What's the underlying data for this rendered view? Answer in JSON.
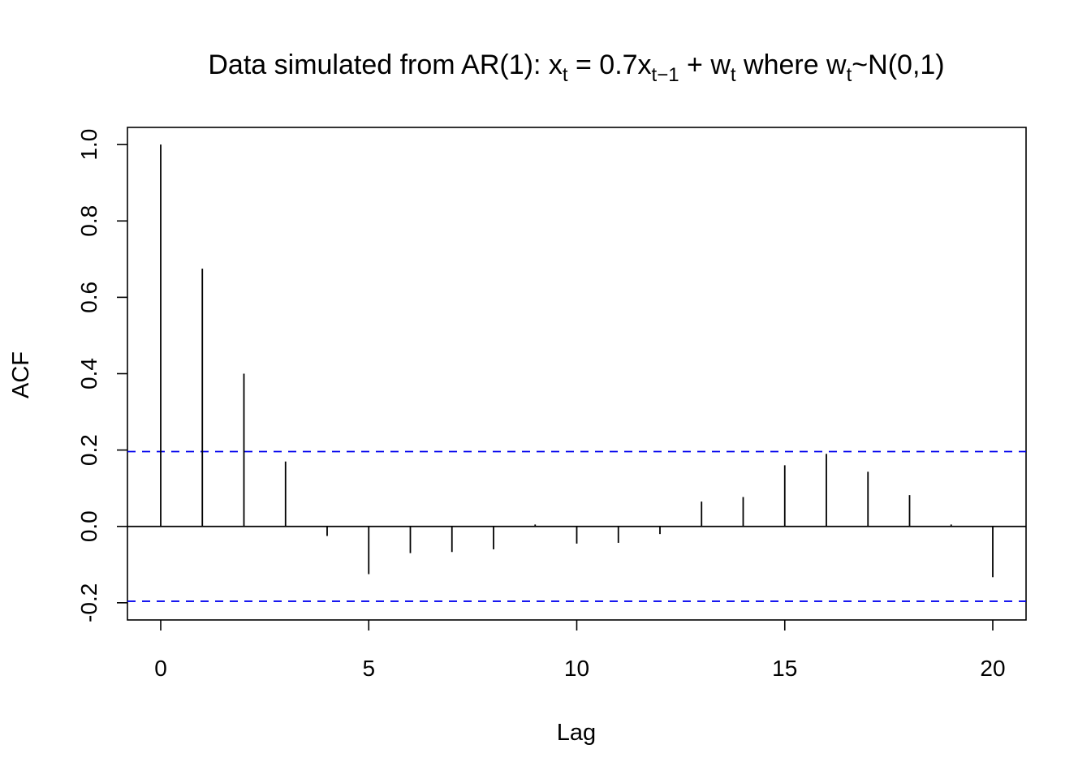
{
  "chart_data": {
    "type": "bar",
    "title": {
      "prefix": "Data simulated from AR(1): x",
      "sub1": "t",
      "mid1": " = 0.7x",
      "sub2": "t−1",
      "mid2": " + w",
      "sub3": "t",
      "mid3": " where w",
      "sub4": "t",
      "suffix": "~N(0,1)"
    },
    "xlabel": "Lag",
    "ylabel": "ACF",
    "xlim": [
      -0.8,
      20.8
    ],
    "ylim": [
      -0.245,
      1.045
    ],
    "x_ticks": [
      0,
      5,
      10,
      15,
      20
    ],
    "y_ticks": [
      -0.2,
      0.0,
      0.2,
      0.4,
      0.6,
      0.8,
      1.0
    ],
    "y_tick_labels": [
      "-0.2",
      "0.0",
      "0.2",
      "0.4",
      "0.6",
      "0.8",
      "1.0"
    ],
    "lags": [
      0,
      1,
      2,
      3,
      4,
      5,
      6,
      7,
      8,
      9,
      10,
      11,
      12,
      13,
      14,
      15,
      16,
      17,
      18,
      19,
      20
    ],
    "values": [
      1.0,
      0.675,
      0.4,
      0.17,
      -0.025,
      -0.125,
      -0.07,
      -0.067,
      -0.06,
      0.005,
      -0.045,
      -0.043,
      -0.02,
      0.065,
      0.077,
      0.16,
      0.19,
      0.143,
      0.082,
      0.005,
      -0.133
    ],
    "confidence_bounds": [
      0.196,
      -0.196
    ],
    "colors": {
      "spike": "#000000",
      "zero_line": "#000000",
      "confidence": "#0000ee",
      "frame": "#000000"
    },
    "grid": false
  }
}
